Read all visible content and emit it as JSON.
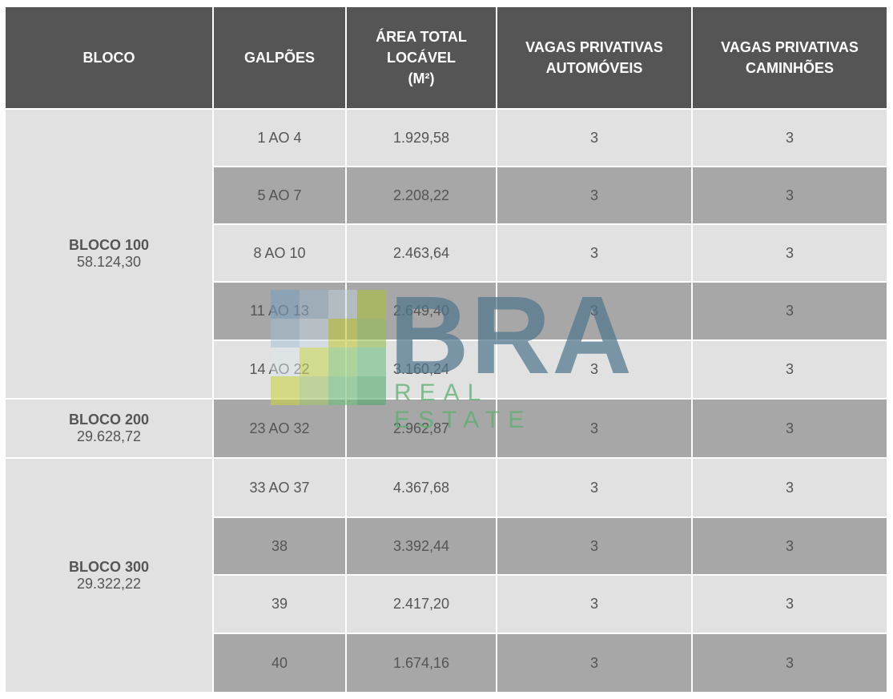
{
  "header": {
    "columns": [
      "BLOCO",
      "GALPÕES",
      "ÁREA TOTAL\nLOCÁVEL\n(M²)",
      "VAGAS PRIVATIVAS\nAUTOMÓVEIS",
      "VAGAS PRIVATIVAS\nCAMINHÕES"
    ]
  },
  "blocks": [
    {
      "name": "BLOCO 100",
      "area": "58.124,30",
      "rows": [
        [
          "1 AO 4",
          "1.929,58",
          "3",
          "3"
        ],
        [
          "5 AO 7",
          "2.208,22",
          "3",
          "3"
        ],
        [
          "8 AO 10",
          "2.463,64",
          "3",
          "3"
        ],
        [
          "11 AO 13",
          "2.649,40",
          "3",
          "3"
        ],
        [
          "14 AO 22",
          "3.160,24",
          "3",
          "3"
        ]
      ]
    },
    {
      "name": "BLOCO 200",
      "area": "29.628,72",
      "rows": [
        [
          "23 AO 32",
          "2.962,87",
          "3",
          "3"
        ]
      ]
    },
    {
      "name": "BLOCO 300",
      "area": "29.322,22",
      "rows": [
        [
          "33 AO 37",
          "4.367,68",
          "3",
          "3"
        ],
        [
          "38",
          "3.392,44",
          "3",
          "3"
        ],
        [
          "39",
          "2.417,20",
          "3",
          "3"
        ],
        [
          "40",
          "1.674,16",
          "3",
          "3"
        ]
      ]
    }
  ],
  "watermark": {
    "title": "BRA",
    "subtitle": "REAL ESTATE"
  }
}
